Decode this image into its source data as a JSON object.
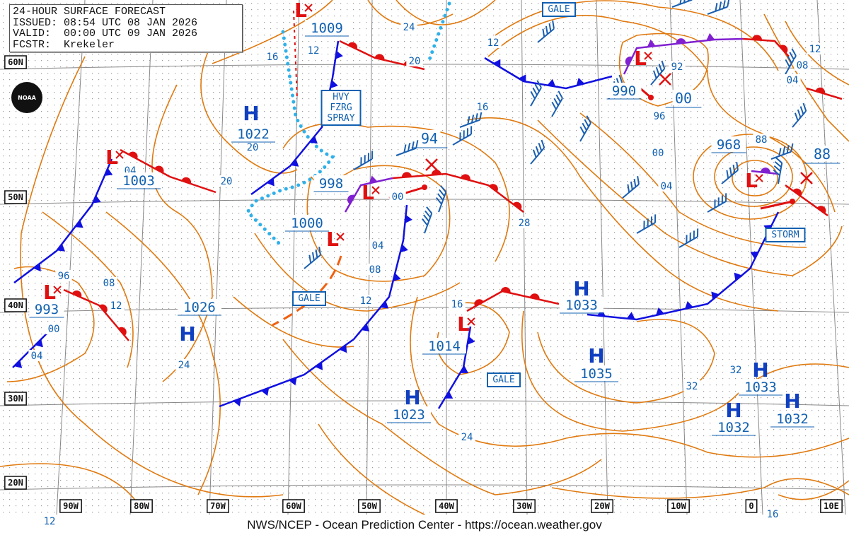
{
  "header": {
    "lines": [
      "24-HOUR SURFACE FORECAST",
      "ISSUED: 08:54 UTC 08 JAN 2026",
      "VALID:  00:00 UTC 09 JAN 2026",
      "FCSTR:  Krekeler"
    ]
  },
  "logo_text": "NOAA",
  "footer": "NWS/NCEP - Ocean Prediction Center - https://ocean.weather.gov",
  "colors": {
    "isobar": "#e07a10",
    "high": "#1040c0",
    "low": "#e01010",
    "cold_front": "#1010e0",
    "warm_front": "#e01010",
    "occluded": "#8020d0",
    "ice": "#30b0e8",
    "label": "#1060b0",
    "grid": "#888888"
  },
  "latitude_labels": [
    "60N",
    "50N",
    "40N",
    "30N",
    "20N"
  ],
  "longitude_labels": [
    "90W",
    "80W",
    "70W",
    "60W",
    "50W",
    "40W",
    "30W",
    "20W",
    "10W",
    "0",
    "10E"
  ],
  "systems": [
    {
      "type": "L",
      "pressure": "1009"
    },
    {
      "type": "L",
      "pressure": "1003"
    },
    {
      "type": "L",
      "pressure": "993"
    },
    {
      "type": "H",
      "pressure": "1022"
    },
    {
      "type": "H",
      "pressure": "1026"
    },
    {
      "type": "L",
      "pressure": "998"
    },
    {
      "type": "L",
      "pressure": "1000"
    },
    {
      "type": "L",
      "pressure": "990"
    },
    {
      "type": "L",
      "pressure": "968"
    },
    {
      "type": "L",
      "pressure": "1014"
    },
    {
      "type": "H",
      "pressure": "1033"
    },
    {
      "type": "H",
      "pressure": "1035"
    },
    {
      "type": "H",
      "pressure": "1023"
    },
    {
      "type": "H",
      "pressure": "1033"
    },
    {
      "type": "H",
      "pressure": "1032"
    },
    {
      "type": "H",
      "pressure": "1032"
    }
  ],
  "warnings": [
    "GALE",
    "HVY\nFZRG\nSPRAY",
    "GALE",
    "GALE",
    "STORM"
  ],
  "isobar_labels": [
    "24",
    "12",
    "16",
    "20",
    "12",
    "16",
    "20",
    "20",
    "04",
    "94",
    "00",
    "04",
    "08",
    "12",
    "28",
    "16",
    "96",
    "08",
    "12",
    "00",
    "04",
    "24",
    "24",
    "32",
    "32",
    "92",
    "00",
    "96",
    "00",
    "04",
    "88",
    "88",
    "12",
    "08",
    "04",
    "12",
    "16"
  ]
}
